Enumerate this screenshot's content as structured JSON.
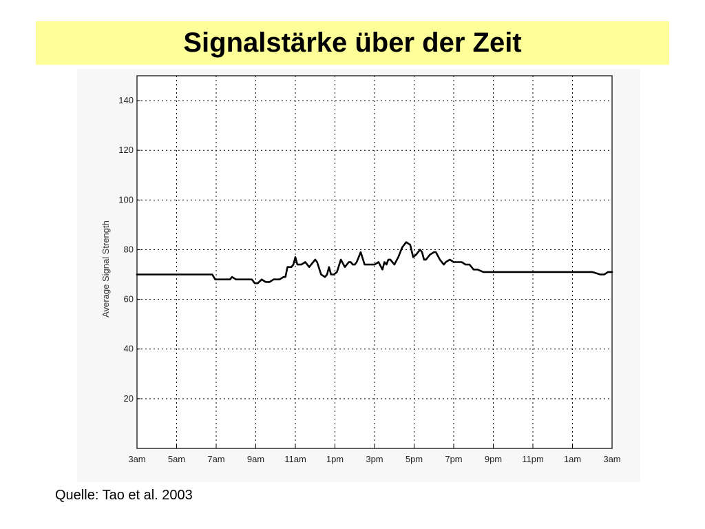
{
  "slide": {
    "title": "Signalstärke über der Zeit",
    "source": "Quelle: Tao et al. 2003",
    "title_background": "#ffff99"
  },
  "chart_data": {
    "type": "line",
    "title": "",
    "xlabel": "",
    "ylabel": "Average Signal Strength",
    "x_unit": "hours since 3am",
    "xlim": [
      0,
      24
    ],
    "ylim": [
      0,
      150
    ],
    "grid": true,
    "x_ticks": [
      {
        "value": 0,
        "label": "3am"
      },
      {
        "value": 2,
        "label": "5am"
      },
      {
        "value": 4,
        "label": "7am"
      },
      {
        "value": 6,
        "label": "9am"
      },
      {
        "value": 8,
        "label": "11am"
      },
      {
        "value": 10,
        "label": "1pm"
      },
      {
        "value": 12,
        "label": "3pm"
      },
      {
        "value": 14,
        "label": "5pm"
      },
      {
        "value": 16,
        "label": "7pm"
      },
      {
        "value": 18,
        "label": "9pm"
      },
      {
        "value": 20,
        "label": "11pm"
      },
      {
        "value": 22,
        "label": "1am"
      },
      {
        "value": 24,
        "label": "3am"
      }
    ],
    "y_ticks": [
      20,
      40,
      60,
      80,
      100,
      120,
      140
    ],
    "series": [
      {
        "name": "",
        "color": "#000000",
        "x": [
          0,
          1,
          2,
          3,
          3.8,
          3.95,
          4.1,
          4.5,
          4.7,
          4.8,
          5.0,
          5.5,
          5.8,
          5.95,
          6.1,
          6.3,
          6.5,
          6.7,
          6.9,
          7.2,
          7.4,
          7.5,
          7.6,
          7.8,
          7.9,
          8.0,
          8.1,
          8.3,
          8.5,
          8.7,
          8.8,
          8.9,
          9.0,
          9.1,
          9.3,
          9.5,
          9.6,
          9.7,
          9.8,
          9.95,
          10.1,
          10.3,
          10.5,
          10.7,
          10.8,
          10.9,
          11.0,
          11.1,
          11.3,
          11.5,
          11.6,
          11.7,
          11.8,
          11.9,
          12.0,
          12.2,
          12.4,
          12.5,
          12.6,
          12.7,
          12.8,
          12.9,
          13.0,
          13.2,
          13.4,
          13.6,
          13.8,
          13.95,
          14.1,
          14.3,
          14.4,
          14.5,
          14.6,
          14.8,
          15.0,
          15.1,
          15.3,
          15.5,
          15.6,
          15.8,
          16.0,
          16.2,
          16.4,
          16.6,
          16.8,
          17.0,
          17.2,
          17.5,
          17.8,
          18.0,
          18.2,
          18.4,
          18.6,
          18.8,
          19.0,
          19.5,
          20.0,
          21.0,
          22.0,
          23.0,
          23.4,
          23.6,
          23.8,
          24.0
        ],
        "y": [
          70,
          70,
          70,
          70,
          70,
          68,
          68,
          68,
          68,
          69,
          68,
          68,
          68,
          66.5,
          66.5,
          68,
          67,
          67,
          68,
          68,
          69,
          69,
          73,
          73,
          74,
          77,
          74,
          74,
          75,
          73,
          74,
          75,
          76,
          75,
          70,
          69,
          70,
          73,
          70,
          70,
          71,
          76,
          73,
          75,
          75,
          74,
          74,
          75,
          79,
          74,
          74,
          74,
          74,
          74,
          74,
          75,
          72,
          75,
          74,
          76,
          76,
          75,
          74,
          77,
          81,
          83,
          82,
          77,
          78,
          80,
          79,
          76,
          76,
          78,
          79,
          79,
          76,
          74,
          75,
          76,
          75,
          75,
          75,
          74,
          74,
          72,
          72,
          71,
          71,
          71,
          71,
          71,
          71,
          71,
          71,
          71,
          71,
          71,
          71,
          71,
          70,
          70,
          71,
          71
        ]
      }
    ]
  }
}
